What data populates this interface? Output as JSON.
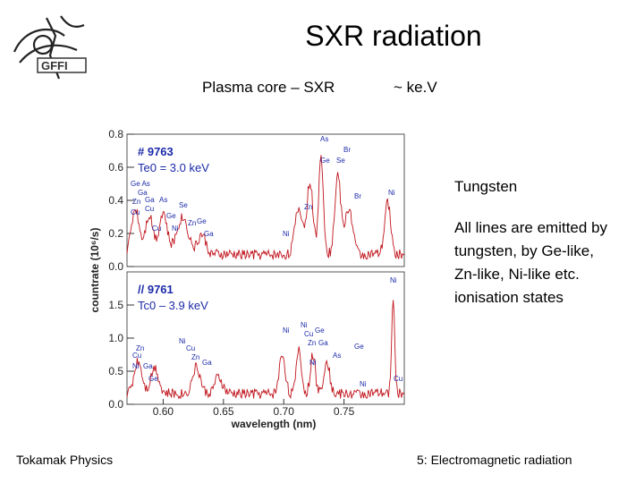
{
  "slide": {
    "title": "SXR radiation",
    "subtitle_left": "Plasma core – SXR",
    "subtitle_right": "~ ke.V",
    "side_heading": "Tungsten",
    "side_lines": [
      "All lines are emitted by",
      "tungsten, by Ge-like,",
      "Zn-like, Ni-like etc.",
      "ionisation states"
    ],
    "footer_left": "Tokamak Physics",
    "footer_right": "5: Electromagnetic radiation"
  },
  "chart_data": [
    {
      "type": "line",
      "panel": "top",
      "shot_label": "# 9763",
      "temp_label": "Te0 = 3.0 keV",
      "ylim": [
        0.0,
        0.8
      ],
      "yticks": [
        "0.8",
        "0.6",
        "0.4",
        "0.2",
        "0.0"
      ],
      "line_labels": [
        "Ge As",
        "Ga",
        "Zn",
        "Ga",
        "As",
        "Cu",
        "Cu",
        "Ge",
        "Se",
        "Ni",
        "Zn",
        "Ge",
        "Ga",
        "Cu",
        "Ni",
        "Zn",
        "As",
        "Br",
        "Ge",
        "Se",
        "Br",
        "Ni"
      ]
    },
    {
      "type": "line",
      "panel": "bottom",
      "shot_label": "// 9761",
      "temp_label": "Tc0 – 3.9 keV",
      "ylim": [
        0.0,
        2.0
      ],
      "yticks": [
        "1.5",
        "1.0",
        "0.5",
        "0.0"
      ],
      "xlabel": "wavelength (nm)",
      "ylabel": "countrate (10⁶/s)",
      "xticks": [
        "0.60",
        "0.65",
        "0.70",
        "0.75"
      ],
      "xlim": [
        0.57,
        0.8
      ],
      "line_labels": [
        "Zn",
        "Cu",
        "Ni",
        "Ga",
        "Ge",
        "Ni",
        "Cu",
        "Zn",
        "Ga",
        "Ni",
        "Ni",
        "Cu",
        "Ge",
        "Zn",
        "Ga",
        "As",
        "Ni",
        "Ge",
        "Ni",
        "Cu",
        "Ni"
      ]
    }
  ]
}
